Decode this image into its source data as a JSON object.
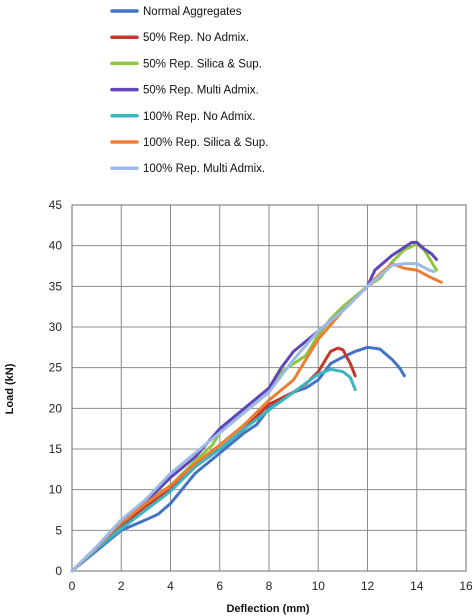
{
  "chart_data": {
    "type": "line",
    "title": "",
    "xlabel": "Deflection (mm)",
    "ylabel": "Load (kN)",
    "xlim": [
      0,
      16
    ],
    "ylim": [
      0,
      45
    ],
    "xticks": [
      0,
      2,
      4,
      6,
      8,
      10,
      12,
      14,
      16
    ],
    "yticks": [
      0,
      5,
      10,
      15,
      20,
      25,
      30,
      35,
      40,
      45
    ],
    "grid": true,
    "legend_position": "top",
    "series": [
      {
        "name": "Normal Aggregates",
        "color": "#4472C4",
        "points": [
          [
            0,
            0
          ],
          [
            1,
            2.5
          ],
          [
            2,
            5
          ],
          [
            3,
            6.3
          ],
          [
            3.5,
            7
          ],
          [
            4,
            8.3
          ],
          [
            5,
            12
          ],
          [
            6,
            14.5
          ],
          [
            7,
            17
          ],
          [
            7.5,
            18
          ],
          [
            8,
            20
          ],
          [
            9,
            22
          ],
          [
            9.5,
            22.5
          ],
          [
            10,
            23.5
          ],
          [
            10.5,
            25.5
          ],
          [
            11,
            26.3
          ],
          [
            11.5,
            27
          ],
          [
            12,
            27.5
          ],
          [
            12.5,
            27.3
          ],
          [
            13,
            26
          ],
          [
            13.3,
            25
          ],
          [
            13.5,
            24
          ]
        ]
      },
      {
        "name": "50% Rep. No Admix.",
        "color": "#C0392B",
        "points": [
          [
            0,
            0
          ],
          [
            1,
            2.8
          ],
          [
            2,
            5.5
          ],
          [
            3,
            8
          ],
          [
            4,
            10
          ],
          [
            5,
            13
          ],
          [
            6,
            15
          ],
          [
            7,
            17.5
          ],
          [
            7.5,
            19
          ],
          [
            8,
            20.5
          ],
          [
            9,
            22
          ],
          [
            9.5,
            23
          ],
          [
            10,
            24.5
          ],
          [
            10.5,
            27
          ],
          [
            10.8,
            27.4
          ],
          [
            11,
            27.2
          ],
          [
            11.3,
            25.5
          ],
          [
            11.5,
            24
          ]
        ]
      },
      {
        "name": "50% Rep. Silica & Sup.",
        "color": "#8DC63F",
        "points": [
          [
            0,
            0
          ],
          [
            1,
            2.8
          ],
          [
            2,
            5.8
          ],
          [
            3,
            8.5
          ],
          [
            4,
            10.5
          ],
          [
            5,
            13.5
          ],
          [
            5.7,
            15.5
          ],
          [
            6,
            17
          ],
          [
            7,
            19.5
          ],
          [
            8,
            22
          ],
          [
            8.5,
            24.5
          ],
          [
            9,
            25.5
          ],
          [
            9.5,
            26.5
          ],
          [
            10,
            29
          ],
          [
            10.5,
            31
          ],
          [
            11,
            32.5
          ],
          [
            12,
            35
          ],
          [
            12.5,
            36
          ],
          [
            13,
            38
          ],
          [
            13.5,
            39.5
          ],
          [
            14,
            40.2
          ],
          [
            14.3,
            39.5
          ],
          [
            14.5,
            38.5
          ],
          [
            14.8,
            37
          ]
        ]
      },
      {
        "name": "50% Rep. Multi Admix.",
        "color": "#6046B8",
        "points": [
          [
            0,
            0
          ],
          [
            1,
            2.9
          ],
          [
            2,
            5.9
          ],
          [
            3,
            8.6
          ],
          [
            3.5,
            10
          ],
          [
            4,
            11.5
          ],
          [
            5,
            14
          ],
          [
            6,
            17.5
          ],
          [
            7,
            20
          ],
          [
            8,
            22.5
          ],
          [
            8.5,
            25
          ],
          [
            9,
            27
          ],
          [
            10,
            29.5
          ],
          [
            11,
            32
          ],
          [
            12,
            35
          ],
          [
            12.3,
            37
          ],
          [
            13,
            38.8
          ],
          [
            13.5,
            39.8
          ],
          [
            13.8,
            40.4
          ],
          [
            14,
            40.4
          ],
          [
            14.3,
            39.6
          ],
          [
            14.6,
            39
          ],
          [
            14.8,
            38.3
          ]
        ]
      },
      {
        "name": "100% Rep. No Admix.",
        "color": "#3BB5C0",
        "points": [
          [
            0,
            0
          ],
          [
            1,
            2.7
          ],
          [
            2,
            5.2
          ],
          [
            3,
            7.5
          ],
          [
            4,
            9.8
          ],
          [
            5,
            12.8
          ],
          [
            6,
            15
          ],
          [
            7,
            17.5
          ],
          [
            8,
            19.8
          ],
          [
            9,
            22
          ],
          [
            10,
            24.2
          ],
          [
            10.5,
            24.8
          ],
          [
            11,
            24.5
          ],
          [
            11.3,
            23.8
          ],
          [
            11.5,
            22.3
          ]
        ]
      },
      {
        "name": "100% Rep. Silica & Sup.",
        "color": "#ED7D31",
        "points": [
          [
            0,
            0
          ],
          [
            1,
            2.9
          ],
          [
            2,
            6
          ],
          [
            3,
            8.3
          ],
          [
            4,
            10.5
          ],
          [
            5,
            13.2
          ],
          [
            6,
            15.5
          ],
          [
            7,
            18
          ],
          [
            8,
            21
          ],
          [
            9,
            23.5
          ],
          [
            9.5,
            26
          ],
          [
            10,
            28.5
          ],
          [
            11,
            32
          ],
          [
            12,
            35
          ],
          [
            12.5,
            36.5
          ],
          [
            13,
            37.8
          ],
          [
            13.5,
            37.2
          ],
          [
            14,
            37
          ],
          [
            14.5,
            36.2
          ],
          [
            15,
            35.5
          ]
        ]
      },
      {
        "name": "100% Rep. Multi Admix.",
        "color": "#9DB9E8",
        "points": [
          [
            0,
            0
          ],
          [
            1,
            3
          ],
          [
            2,
            6.3
          ],
          [
            3,
            8.8
          ],
          [
            4,
            12
          ],
          [
            5,
            14.5
          ],
          [
            6,
            17
          ],
          [
            7,
            19.5
          ],
          [
            8,
            22
          ],
          [
            9,
            26
          ],
          [
            10,
            29.5
          ],
          [
            11,
            32
          ],
          [
            12,
            35
          ],
          [
            12.5,
            36.3
          ],
          [
            13,
            37.6
          ],
          [
            13.5,
            37.8
          ],
          [
            14,
            37.8
          ],
          [
            14.5,
            37
          ],
          [
            14.7,
            36.8
          ]
        ]
      }
    ]
  }
}
